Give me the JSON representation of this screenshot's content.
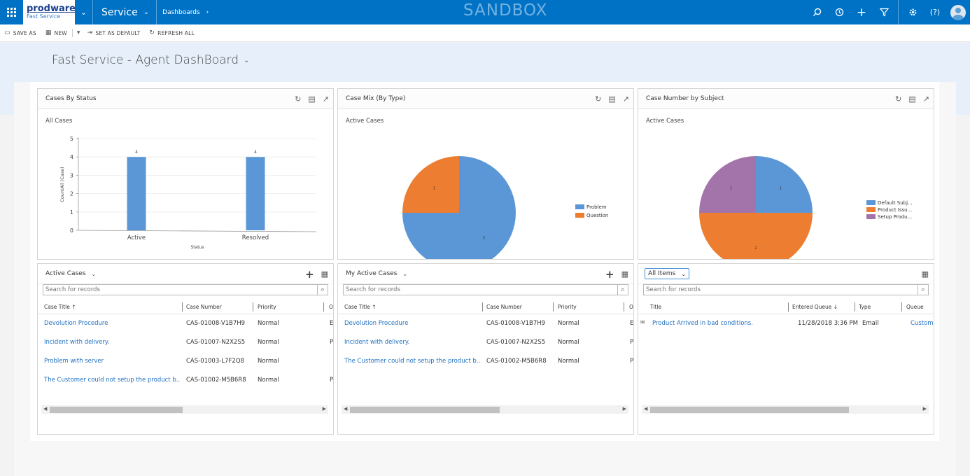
{
  "nav": {
    "logo_main": "prodware",
    "logo_sub": "Fast Service",
    "module": "Service",
    "area": "Dashboards",
    "env_label": "SANDBOX"
  },
  "commands": [
    {
      "label": "SAVE AS",
      "icon": "save-as-icon"
    },
    {
      "label": "NEW",
      "icon": "new-dashboard-icon"
    },
    {
      "label": "SET AS DEFAULT",
      "icon": "pin-icon"
    },
    {
      "label": "REFRESH ALL",
      "icon": "refresh-icon"
    }
  ],
  "dashboard": {
    "title": "Fast Service - Agent DashBoard"
  },
  "charts": {
    "status": {
      "title": "Cases By Status",
      "view": "All Cases"
    },
    "mix": {
      "title": "Case Mix (By Type)",
      "view": "Active Cases"
    },
    "subject": {
      "title": "Case Number by Subject",
      "view": "Active Cases"
    }
  },
  "chart_data": [
    {
      "type": "bar",
      "title": "Cases By Status",
      "subtitle": "All Cases",
      "categories": [
        "Active",
        "Resolved"
      ],
      "values": [
        4,
        4
      ],
      "data_labels": [
        "4",
        "4"
      ],
      "xlabel": "Status",
      "ylabel": "CountAll (Case)",
      "ylim": [
        0,
        5
      ],
      "yticks": [
        0,
        1,
        2,
        3,
        4,
        5
      ],
      "color": "#5b97d6"
    },
    {
      "type": "pie",
      "title": "Case Mix (By Type)",
      "subtitle": "Active Cases",
      "categories": [
        "Problem",
        "Question"
      ],
      "values": [
        3,
        1
      ],
      "data_labels": [
        "3",
        "1"
      ],
      "colors": [
        "#5b97d6",
        "#ed7d31"
      ],
      "legend": "right"
    },
    {
      "type": "pie",
      "title": "Case Number by Subject",
      "subtitle": "Active Cases",
      "categories": [
        "Default Subj...",
        "Product Issu...",
        "Setup Produ..."
      ],
      "values": [
        1,
        2,
        1
      ],
      "data_labels": [
        "1",
        "2",
        "1"
      ],
      "colors": [
        "#5b97d6",
        "#ed7d31",
        "#a374a9"
      ],
      "legend": "right"
    }
  ],
  "grids": {
    "active": {
      "title": "Active Cases",
      "search_placeholder": "Search for records",
      "columns": [
        "Case Title ↑",
        "Case Number",
        "Priority",
        "O"
      ],
      "rows": [
        {
          "title": "Devolution Procedure",
          "number": "CAS-01008-V1B7H9",
          "priority": "Normal",
          "extra": "E"
        },
        {
          "title": "Incident with delivery.",
          "number": "CAS-01007-N2X2S5",
          "priority": "Normal",
          "extra": "P"
        },
        {
          "title": "Problem with server",
          "number": "CAS-01003-L7F2Q8",
          "priority": "Normal",
          "extra": ""
        },
        {
          "title": "The Customer could not setup the product b...",
          "number": "CAS-01002-M5B6R8",
          "priority": "Normal",
          "extra": "P"
        }
      ]
    },
    "my_active": {
      "title": "My Active Cases",
      "search_placeholder": "Search for records",
      "columns": [
        "Case Title ↑",
        "Case Number",
        "Priority",
        "O"
      ],
      "rows": [
        {
          "title": "Devolution Procedure",
          "number": "CAS-01008-V1B7H9",
          "priority": "Normal",
          "extra": "E"
        },
        {
          "title": "Incident with delivery.",
          "number": "CAS-01007-N2X2S5",
          "priority": "Normal",
          "extra": "P"
        },
        {
          "title": "The Customer could not setup the product b...",
          "number": "CAS-01002-M5B6R8",
          "priority": "Normal",
          "extra": "P"
        }
      ]
    },
    "queue": {
      "title": "All Items",
      "search_placeholder": "Search for records",
      "columns": [
        "Title",
        "Entered Queue ↓",
        "Type",
        "Queue"
      ],
      "rows": [
        {
          "title": "Product Arrived in bad conditions.",
          "entered": "11/28/2018 3:36 PM",
          "type": "Email",
          "queue": "Custom"
        }
      ]
    }
  }
}
